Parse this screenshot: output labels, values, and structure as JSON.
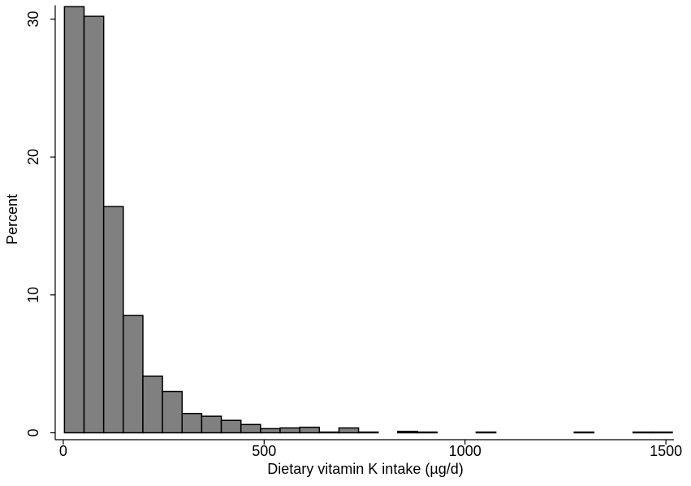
{
  "chart_data": {
    "type": "histogram",
    "x_label": "Dietary vitamin K intake (µg/d)",
    "y_label": "Percent",
    "bins": [
      3,
      51.8,
      100.6,
      149.4,
      198.2,
      247,
      295.8,
      344.6,
      393.4,
      442.2,
      491,
      539.8,
      588.6,
      637.4,
      686.2,
      735,
      783.8,
      832.6,
      881.4,
      930.2,
      979,
      1027.8,
      1076.6,
      1125.4,
      1174.2,
      1223,
      1271.8,
      1320.6,
      1369.4,
      1418.2,
      1467,
      1515.8
    ],
    "counts": [
      30.9,
      30.2,
      16.4,
      8.5,
      4.1,
      3.0,
      1.4,
      1.2,
      0.9,
      0.6,
      0.3,
      0.35,
      0.4,
      0.05,
      0.35,
      0.05,
      0,
      0.1,
      0.05,
      0,
      0,
      0.05,
      0,
      0,
      0,
      0,
      0.05,
      0,
      0,
      0.05,
      0.05
    ],
    "color": "#808080",
    "xlim": [
      -20,
      1520
    ],
    "xticks": [
      0,
      500,
      1000,
      1500
    ],
    "ylim": [
      -0.5,
      31
    ],
    "yticks": [
      0,
      10,
      20,
      30
    ]
  }
}
